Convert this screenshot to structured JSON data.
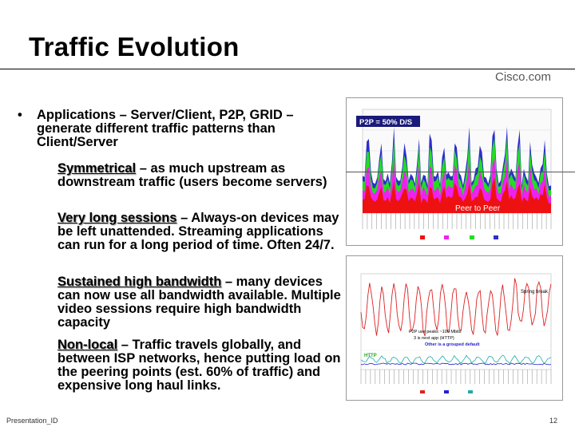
{
  "slide": {
    "title": "Traffic Evolution",
    "brand": "Cisco.com",
    "bullet_dot": "•",
    "bullet_text": "Applications – Server/Client, P2P, GRID – generate different traffic patterns than Client/Server",
    "subpoints": [
      {
        "term": "Symmetrical",
        "text": " – as much upstream as downstream traffic (users become servers)"
      },
      {
        "term": "Very long sessions",
        "text": " – Always-on devices may be left unattended. Streaming applications can run for a long period of time. Often 24/7."
      },
      {
        "term": "Sustained high bandwidth",
        "text": " – many devices can now use all bandwidth available. Multiple video sessions require high bandwidth capacity"
      },
      {
        "term": "Non-local",
        "text": " – Traffic travels globally, and between ISP networks, hence putting load on the peering points (est. 60% of traffic) and expensive long haul links."
      }
    ],
    "footer_left": "Presentation_ID",
    "footer_right": "12"
  },
  "charts": {
    "top": {
      "badge": "P2P = 50% D/S",
      "label": "Peer to Peer",
      "colors": {
        "blue": "#2e2ecc",
        "green": "#22dd22",
        "magenta": "#ee22ee",
        "red": "#ee1111",
        "badge_bg": "#1a1a7a"
      }
    },
    "bottom": {
      "annotation_1": "Spring break",
      "annotation_2": "P2P use peaks ~100 Mbits",
      "annotation_3": "3 is next app (HTTP)",
      "annotation_4": "Other is a grouped default",
      "annotation_5": "HTTP",
      "colors": {
        "red": "#dd2222",
        "blue": "#2222cc",
        "teal": "#22aaaa",
        "black": "#000000"
      }
    }
  }
}
